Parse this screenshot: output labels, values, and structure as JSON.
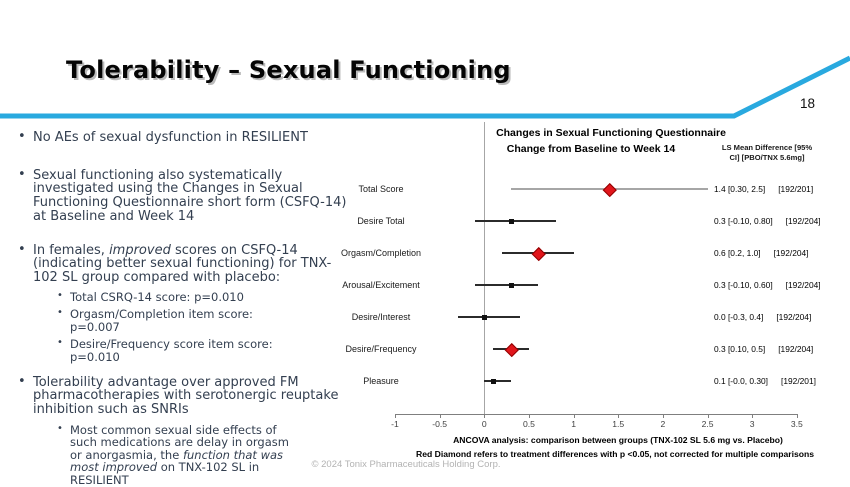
{
  "slide": {
    "title": "Tolerability – Sexual Functioning",
    "page_number": "18",
    "footer": "© 2024 Tonix Pharmaceuticals Holding Corp.",
    "accent_color": "#29A9DF"
  },
  "bullets": [
    {
      "level": 1,
      "parts": [
        {
          "text": "No AEs of sexual dysfunction in RESILIENT"
        }
      ]
    },
    {
      "level": 1,
      "parts": [
        {
          "text": "Sexual functioning also systematically investigated using the Changes in Sexual Functioning Questionnaire short form (CSFQ-14) at Baseline and Week 14"
        }
      ]
    },
    {
      "level": 1,
      "parts": [
        {
          "text": "In females, "
        },
        {
          "text": "improved",
          "italic": true
        },
        {
          "text": " scores on CSFQ-14 (indicating better sexual functioning) for TNX-102 SL group compared with placebo:"
        }
      ]
    },
    {
      "level": 2,
      "parts": [
        {
          "text": "Total CSRQ-14 score: p=0.010"
        }
      ]
    },
    {
      "level": 2,
      "parts": [
        {
          "text": "Orgasm/Completion item score:  p=0.007"
        }
      ]
    },
    {
      "level": 2,
      "parts": [
        {
          "text": "Desire/Frequency score item score: p=0.010"
        }
      ]
    },
    {
      "level": 1,
      "parts": [
        {
          "text": "Tolerability advantage over approved FM pharmacotherapies with serotonergic reuptake inhibition such as SNRIs"
        }
      ]
    },
    {
      "level": 2,
      "parts": [
        {
          "text": "Most common sexual side effects of such medications are delay in orgasm or anorgasmia, the "
        },
        {
          "text": "function that was most improved",
          "italic": true
        },
        {
          "text": " on TNX-102 SL in RESILIENT"
        }
      ]
    }
  ],
  "chart_data": {
    "type": "scatter",
    "subtype": "forest-plot (LS mean difference with 95% CI)",
    "title_line1": "Changes in Sexual Functioning Questionnaire",
    "title_line2": "Change from Baseline to Week 14",
    "value_header_lines": [
      "LS Mean Difference [95%",
      "CI] [PBO/TNX 5.6mg]"
    ],
    "xlim": [
      -1,
      3.5
    ],
    "xticks": [
      -1,
      -0.5,
      0,
      0.5,
      1,
      1.5,
      2,
      2.5,
      3,
      3.5
    ],
    "xtick_labels": [
      "-1",
      "-0.5",
      "0",
      "0.5",
      "1",
      "1.5",
      "2",
      "2.5",
      "3",
      "3.5"
    ],
    "zero_reference_line": true,
    "legend_position": "none",
    "rows": [
      {
        "label": "Total Score",
        "mean": 1.4,
        "lo": 0.3,
        "hi": 2.5,
        "significant": true,
        "gray_line": true,
        "value_text": "1.4 [0.30, 2.5]",
        "n_text": "[192/201]"
      },
      {
        "label": "Desire Total",
        "mean": 0.3,
        "lo": -0.1,
        "hi": 0.8,
        "significant": false,
        "gray_line": false,
        "value_text": "0.3 [-0.10, 0.80]",
        "n_text": "[192/204]"
      },
      {
        "label": "Orgasm/Completion",
        "mean": 0.6,
        "lo": 0.2,
        "hi": 1.0,
        "significant": true,
        "gray_line": false,
        "value_text": "0.6 [0.2, 1.0]",
        "n_text": "[192/204]"
      },
      {
        "label": "Arousal/Excitement",
        "mean": 0.3,
        "lo": -0.1,
        "hi": 0.6,
        "significant": false,
        "gray_line": false,
        "value_text": "0.3 [-0.10, 0.60]",
        "n_text": "[192/204]"
      },
      {
        "label": "Desire/Interest",
        "mean": 0.0,
        "lo": -0.3,
        "hi": 0.4,
        "significant": false,
        "gray_line": false,
        "value_text": "0.0 [-0.3, 0.4]",
        "n_text": "[192/204]"
      },
      {
        "label": "Desire/Frequency",
        "mean": 0.3,
        "lo": 0.1,
        "hi": 0.5,
        "significant": true,
        "gray_line": false,
        "value_text": "0.3 [0.10, 0.5]",
        "n_text": "[192/204]"
      },
      {
        "label": "Pleasure",
        "mean": 0.1,
        "lo": -0.0,
        "hi": 0.3,
        "significant": false,
        "gray_line": false,
        "value_text": "0.1 [-0.0, 0.30]",
        "n_text": "[192/201]"
      }
    ],
    "footnote_line1": "ANCOVA analysis: comparison between groups (TNX-102 SL 5.6 mg vs. Placebo)",
    "footnote_line2": "Red Diamond refers to treatment differences with p <0.05, not corrected for multiple comparisons",
    "colors": {
      "significant_diamond": "#e1151b",
      "mean_square": "#111111",
      "gray_ci": "#a6a6a6",
      "ci_line": "#2b2b2b"
    }
  }
}
